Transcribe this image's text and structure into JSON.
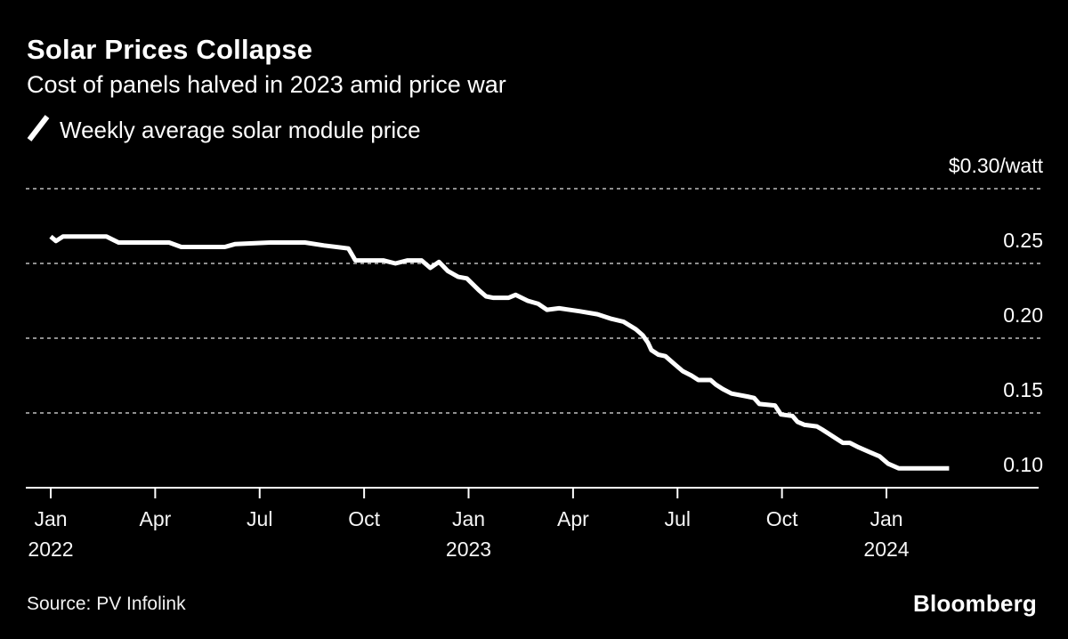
{
  "page": {
    "background": "#000000",
    "text_color": "#ffffff"
  },
  "header": {
    "title": "Solar Prices Collapse",
    "subtitle": "Cost of panels halved in 2023 amid price war"
  },
  "legend": {
    "marker": "slash-line-icon",
    "label": "Weekly average solar module price",
    "color": "#ffffff"
  },
  "footer": {
    "source": "Source: PV Infolink",
    "brand": "Bloomberg"
  },
  "chart_data": {
    "type": "line",
    "title": "Solar Prices Collapse",
    "subtitle": "Cost of panels halved in 2023 amid price war",
    "unit": "$/watt",
    "grid": {
      "style": "dashed-horizontal",
      "color": "#8f8f8f"
    },
    "legend_position": "top-left",
    "x_axis": {
      "start": "Jan 2022",
      "end": "Mar 2024",
      "unit": "month_offset_from_Jan_2022",
      "ticks": [
        {
          "m": 0,
          "label": "Jan",
          "year": "2022"
        },
        {
          "m": 3,
          "label": "Apr",
          "year": ""
        },
        {
          "m": 6,
          "label": "Jul",
          "year": ""
        },
        {
          "m": 9,
          "label": "Oct",
          "year": ""
        },
        {
          "m": 12,
          "label": "Jan",
          "year": "2023"
        },
        {
          "m": 15,
          "label": "Apr",
          "year": ""
        },
        {
          "m": 18,
          "label": "Jul",
          "year": ""
        },
        {
          "m": 21,
          "label": "Oct",
          "year": ""
        },
        {
          "m": 24,
          "label": "Jan",
          "year": "2024"
        }
      ]
    },
    "y_axis": {
      "min": 0.1,
      "max": 0.3,
      "step": 0.05,
      "ticks": [
        {
          "value": 0.3,
          "label": "$0.30/watt"
        },
        {
          "value": 0.25,
          "label": "0.25"
        },
        {
          "value": 0.2,
          "label": "0.20"
        },
        {
          "value": 0.15,
          "label": "0.15"
        },
        {
          "value": 0.1,
          "label": "0.10"
        }
      ]
    },
    "series": [
      {
        "name": "Weekly average solar module price",
        "color": "#ffffff",
        "points": [
          [
            0.0,
            0.268
          ],
          [
            0.15,
            0.265
          ],
          [
            0.35,
            0.268
          ],
          [
            1.6,
            0.268
          ],
          [
            1.95,
            0.264
          ],
          [
            3.4,
            0.264
          ],
          [
            3.75,
            0.261
          ],
          [
            5.0,
            0.261
          ],
          [
            5.3,
            0.263
          ],
          [
            6.3,
            0.264
          ],
          [
            7.3,
            0.264
          ],
          [
            7.85,
            0.262
          ],
          [
            8.55,
            0.26
          ],
          [
            8.75,
            0.252
          ],
          [
            9.55,
            0.252
          ],
          [
            9.9,
            0.25
          ],
          [
            10.25,
            0.252
          ],
          [
            10.65,
            0.252
          ],
          [
            10.9,
            0.247
          ],
          [
            11.15,
            0.251
          ],
          [
            11.4,
            0.245
          ],
          [
            11.7,
            0.241
          ],
          [
            11.95,
            0.24
          ],
          [
            12.3,
            0.232
          ],
          [
            12.5,
            0.228
          ],
          [
            12.7,
            0.227
          ],
          [
            13.15,
            0.227
          ],
          [
            13.35,
            0.229
          ],
          [
            13.7,
            0.225
          ],
          [
            14.0,
            0.223
          ],
          [
            14.25,
            0.219
          ],
          [
            14.6,
            0.22
          ],
          [
            15.2,
            0.218
          ],
          [
            15.7,
            0.216
          ],
          [
            16.1,
            0.213
          ],
          [
            16.45,
            0.211
          ],
          [
            16.8,
            0.206
          ],
          [
            17.0,
            0.202
          ],
          [
            17.15,
            0.197
          ],
          [
            17.25,
            0.192
          ],
          [
            17.45,
            0.189
          ],
          [
            17.65,
            0.188
          ],
          [
            17.9,
            0.183
          ],
          [
            18.15,
            0.178
          ],
          [
            18.4,
            0.175
          ],
          [
            18.6,
            0.172
          ],
          [
            18.95,
            0.172
          ],
          [
            19.1,
            0.169
          ],
          [
            19.3,
            0.166
          ],
          [
            19.55,
            0.163
          ],
          [
            20.0,
            0.161
          ],
          [
            20.2,
            0.16
          ],
          [
            20.35,
            0.156
          ],
          [
            20.8,
            0.155
          ],
          [
            20.97,
            0.149
          ],
          [
            21.3,
            0.148
          ],
          [
            21.45,
            0.144
          ],
          [
            21.65,
            0.142
          ],
          [
            22.0,
            0.141
          ],
          [
            22.15,
            0.139
          ],
          [
            22.35,
            0.136
          ],
          [
            22.55,
            0.133
          ],
          [
            22.75,
            0.13
          ],
          [
            22.95,
            0.13
          ],
          [
            23.2,
            0.127
          ],
          [
            23.5,
            0.124
          ],
          [
            23.8,
            0.121
          ],
          [
            24.05,
            0.116
          ],
          [
            24.35,
            0.113
          ],
          [
            25.8,
            0.113
          ]
        ]
      }
    ]
  }
}
